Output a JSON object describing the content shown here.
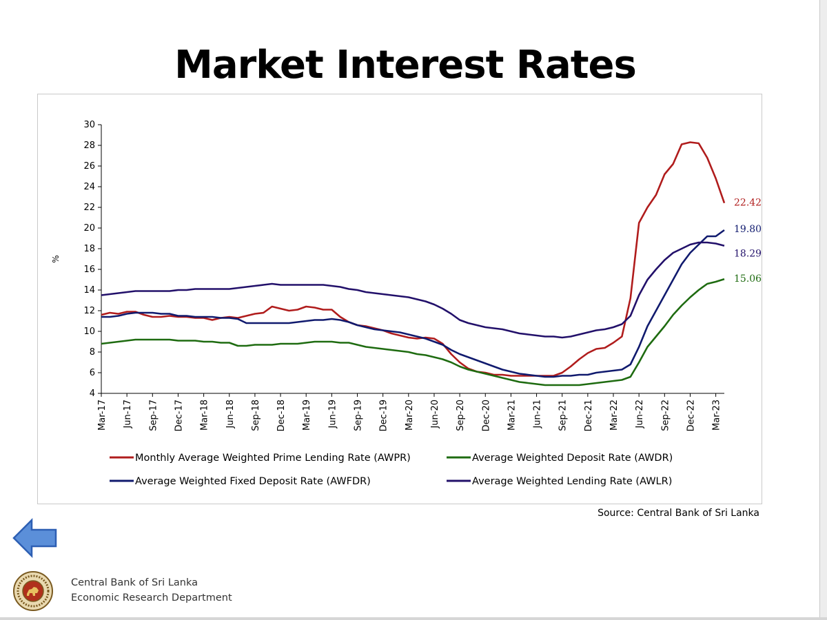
{
  "slide": {
    "title": "Market Interest Rates",
    "source": "Source: Central Bank of Sri Lanka",
    "footer_line1": "Central Bank of Sri Lanka",
    "footer_line2": "Economic Research Department",
    "back_arrow_icon": "left-arrow-icon",
    "logo_icon": "central-bank-seal-icon"
  },
  "colors": {
    "awpr": "#b01c1c",
    "awdr": "#1e6b10",
    "awfdr": "#101a6e",
    "awlr": "#22106a",
    "arrow_fill": "#5b8fd9",
    "arrow_stroke": "#2d5fb3"
  },
  "chart_data": {
    "type": "line",
    "ylabel": "%",
    "ylim": [
      4,
      30
    ],
    "yticks": [
      4,
      6,
      8,
      10,
      12,
      14,
      16,
      18,
      20,
      22,
      24,
      26,
      28,
      30
    ],
    "x_start": "Mar-17",
    "x_end": "Mar-23",
    "xticks": [
      "Mar-17",
      "Jun-17",
      "Sep-17",
      "Dec-17",
      "Mar-18",
      "Jun-18",
      "Sep-18",
      "Dec-18",
      "Mar-19",
      "Jun-19",
      "Sep-19",
      "Dec-19",
      "Mar-20",
      "Jun-20",
      "Sep-20",
      "Dec-20",
      "Mar-21",
      "Jun-21",
      "Sep-21",
      "Dec-21",
      "Mar-22",
      "Jun-22",
      "Sep-22",
      "Dec-22",
      "Mar-23"
    ],
    "legend_position": "bottom",
    "series": [
      {
        "key": "awpr",
        "name": "Monthly Average Weighted Prime Lending Rate (AWPR)",
        "end_label": "22.42",
        "values": [
          11.6,
          11.8,
          11.7,
          11.9,
          11.9,
          11.6,
          11.4,
          11.4,
          11.5,
          11.4,
          11.4,
          11.3,
          11.3,
          11.1,
          11.3,
          11.4,
          11.3,
          11.5,
          11.7,
          11.8,
          12.4,
          12.2,
          12.0,
          12.1,
          12.4,
          12.3,
          12.1,
          12.1,
          11.4,
          10.9,
          10.6,
          10.5,
          10.3,
          10.1,
          9.8,
          9.6,
          9.4,
          9.3,
          9.4,
          9.3,
          8.8,
          7.8,
          7.0,
          6.4,
          6.1,
          6.0,
          5.8,
          5.8,
          5.7,
          5.7,
          5.7,
          5.7,
          5.7,
          5.7,
          6.0,
          6.6,
          7.3,
          7.9,
          8.3,
          8.4,
          8.9,
          9.5,
          13.2,
          20.5,
          22.0,
          23.2,
          25.2,
          26.2,
          28.1,
          28.3,
          28.2,
          26.8,
          24.8,
          22.42
        ]
      },
      {
        "key": "awdr",
        "name": "Average Weighted Deposit Rate (AWDR)",
        "end_label": "15.06",
        "values": [
          8.8,
          8.9,
          9.0,
          9.1,
          9.2,
          9.2,
          9.2,
          9.2,
          9.2,
          9.1,
          9.1,
          9.1,
          9.0,
          9.0,
          8.9,
          8.9,
          8.6,
          8.6,
          8.7,
          8.7,
          8.7,
          8.8,
          8.8,
          8.8,
          8.9,
          9.0,
          9.0,
          9.0,
          8.9,
          8.9,
          8.7,
          8.5,
          8.4,
          8.3,
          8.2,
          8.1,
          8.0,
          7.8,
          7.7,
          7.5,
          7.3,
          7.0,
          6.6,
          6.3,
          6.1,
          5.9,
          5.7,
          5.5,
          5.3,
          5.1,
          5.0,
          4.9,
          4.8,
          4.8,
          4.8,
          4.8,
          4.8,
          4.9,
          5.0,
          5.1,
          5.2,
          5.3,
          5.6,
          7.0,
          8.5,
          9.5,
          10.5,
          11.6,
          12.5,
          13.3,
          14.0,
          14.6,
          14.8,
          15.06
        ]
      },
      {
        "key": "awfdr",
        "name": "Average Weighted Fixed Deposit Rate (AWFDR)",
        "end_label": "19.80",
        "values": [
          11.4,
          11.4,
          11.5,
          11.7,
          11.8,
          11.8,
          11.8,
          11.7,
          11.7,
          11.5,
          11.5,
          11.4,
          11.4,
          11.4,
          11.3,
          11.3,
          11.2,
          10.8,
          10.8,
          10.8,
          10.8,
          10.8,
          10.8,
          10.9,
          11.0,
          11.1,
          11.1,
          11.2,
          11.1,
          10.9,
          10.6,
          10.4,
          10.2,
          10.1,
          10.0,
          9.9,
          9.7,
          9.5,
          9.3,
          9.0,
          8.7,
          8.2,
          7.8,
          7.5,
          7.2,
          6.9,
          6.6,
          6.3,
          6.1,
          5.9,
          5.8,
          5.7,
          5.6,
          5.6,
          5.7,
          5.7,
          5.8,
          5.8,
          6.0,
          6.1,
          6.2,
          6.3,
          6.8,
          8.5,
          10.5,
          12.0,
          13.5,
          15.0,
          16.5,
          17.6,
          18.4,
          19.2,
          19.2,
          19.8
        ]
      },
      {
        "key": "awlr",
        "name": "Average Weighted Lending Rate (AWLR)",
        "end_label": "18.29",
        "values": [
          13.5,
          13.6,
          13.7,
          13.8,
          13.9,
          13.9,
          13.9,
          13.9,
          13.9,
          14.0,
          14.0,
          14.1,
          14.1,
          14.1,
          14.1,
          14.1,
          14.2,
          14.3,
          14.4,
          14.5,
          14.6,
          14.5,
          14.5,
          14.5,
          14.5,
          14.5,
          14.5,
          14.4,
          14.3,
          14.1,
          14.0,
          13.8,
          13.7,
          13.6,
          13.5,
          13.4,
          13.3,
          13.1,
          12.9,
          12.6,
          12.2,
          11.7,
          11.1,
          10.8,
          10.6,
          10.4,
          10.3,
          10.2,
          10.0,
          9.8,
          9.7,
          9.6,
          9.5,
          9.5,
          9.4,
          9.5,
          9.7,
          9.9,
          10.1,
          10.2,
          10.4,
          10.7,
          11.5,
          13.5,
          15.0,
          16.0,
          16.9,
          17.6,
          18.0,
          18.4,
          18.6,
          18.6,
          18.5,
          18.29
        ]
      }
    ]
  }
}
